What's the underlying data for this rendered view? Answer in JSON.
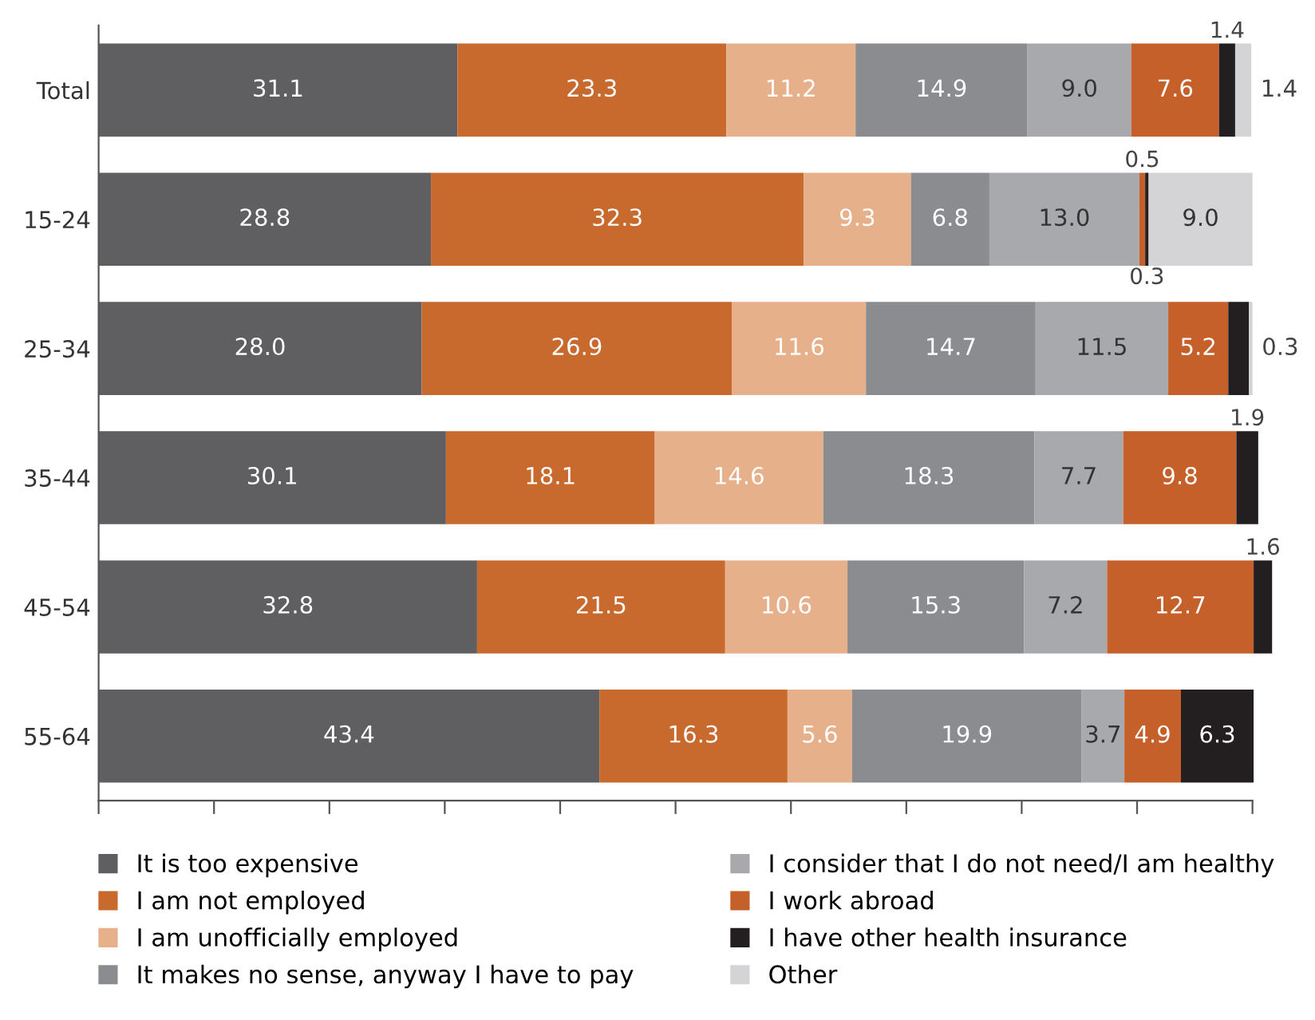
{
  "chart_data": {
    "type": "bar",
    "orientation": "horizontal",
    "stacked": true,
    "categories": [
      "Total",
      "15-24",
      "25-34",
      "35-44",
      "45-54",
      "55-64"
    ],
    "xlim": [
      0,
      102
    ],
    "xticks": [
      {
        "value": 0,
        "label": null
      },
      {
        "value": 10,
        "label": null
      },
      {
        "value": 20,
        "label": null
      },
      {
        "value": 30,
        "label": null
      },
      {
        "value": 40,
        "label": null
      },
      {
        "value": 50,
        "label": null
      },
      {
        "value": 60,
        "label": null
      },
      {
        "value": 70,
        "label": null
      },
      {
        "value": 80,
        "label": null
      },
      {
        "value": 90,
        "label": null
      },
      {
        "value": 100,
        "label": null
      }
    ],
    "tick_labels": "y",
    "legend": "bottom",
    "grid": false,
    "series": [
      {
        "name": "It is too expensive",
        "color": "#5f5f61",
        "values": [
          31.1,
          28.8,
          28.0,
          30.1,
          32.8,
          43.4
        ],
        "value_labels": [
          "31.1",
          "28.8",
          "28.0",
          "30.1",
          "32.8",
          "43.4"
        ]
      },
      {
        "name": "I am not employed",
        "color": "#c8692e",
        "values": [
          23.3,
          32.3,
          26.9,
          18.1,
          21.5,
          16.3
        ],
        "value_labels": [
          "23.3",
          "32.3",
          "26.9",
          "18.1",
          "21.5",
          "16.3"
        ]
      },
      {
        "name": "I am unofficially employed",
        "color": "#e6b08b",
        "values": [
          11.2,
          9.3,
          11.6,
          14.6,
          10.6,
          5.6
        ],
        "value_labels": [
          "11.2",
          "9.3",
          "11.6",
          "14.6",
          "10.6",
          "5.6"
        ]
      },
      {
        "name": "It makes no sense, anyway I have to pay",
        "color": "#8b8c8f",
        "values": [
          14.9,
          6.8,
          14.7,
          18.3,
          15.3,
          19.9
        ],
        "value_labels": [
          "14.9",
          "6.8",
          "14.7",
          "18.3",
          "15.3",
          "19.9"
        ]
      },
      {
        "name": "I consider that I do not need/I am healthy",
        "color": "#a8a9ac",
        "values": [
          9.0,
          13.0,
          11.5,
          7.7,
          7.2,
          3.7
        ],
        "value_labels": [
          "9.0",
          "13.0",
          "11.5",
          "7.7",
          "7.2",
          "3.7"
        ]
      },
      {
        "name": "I work abroad",
        "color": "#c6602a",
        "values": [
          7.6,
          0.5,
          5.2,
          9.8,
          12.7,
          4.9
        ],
        "value_labels": [
          "7.6",
          "0.5",
          "5.2",
          "9.8",
          "12.7",
          "4.9"
        ]
      },
      {
        "name": "I have other health insurance",
        "color": "#231f20",
        "values": [
          1.4,
          0.3,
          1.8,
          1.9,
          1.6,
          6.3
        ],
        "value_labels": [
          "1.4",
          "0.3",
          null,
          "1.9",
          "1.6",
          "6.3"
        ]
      },
      {
        "name": "Other",
        "color": "#d4d4d6",
        "values": [
          1.4,
          9.0,
          0.3,
          null,
          null,
          null
        ],
        "value_labels": [
          "1.4",
          "9.0",
          "0.3",
          null,
          null,
          null
        ]
      }
    ]
  }
}
